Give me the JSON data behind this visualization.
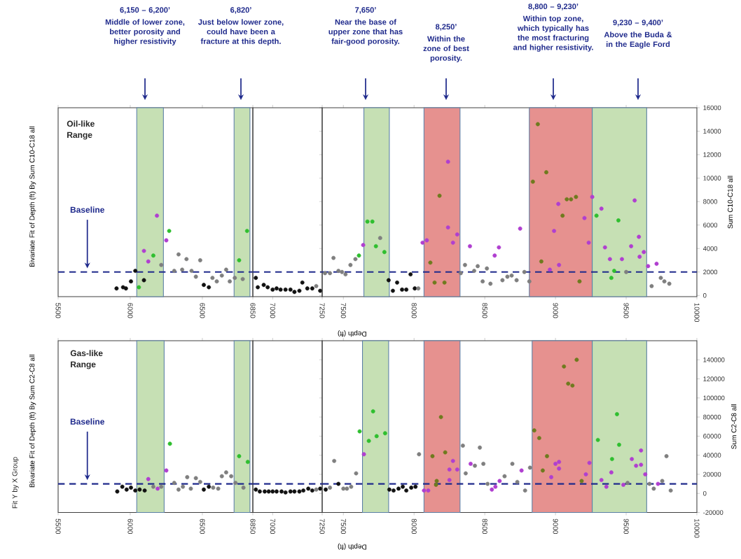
{
  "chart_data": [
    {
      "type": "scatter",
      "title": "Bivariate Fit of Depth (ft) By Sum C10-C18 all",
      "marker": "circle",
      "tick_labels": "x",
      "annotations": [
        "Oil-like Range",
        "6,150 – 6,200’",
        "Middle of lower zone, better porosity and higher resistivity",
        "6,820’",
        "Just below lower zone, could have been a fracture at this depth."
      ],
      "xlim": [
        5500,
        6850
      ],
      "ylim": [
        -100,
        16000
      ],
      "xticks": [
        5500,
        6000,
        6500,
        6850
      ],
      "bands": [
        {
          "axis": "x",
          "from": 6045,
          "to": 6230,
          "color": "#c6e0b4"
        },
        {
          "axis": "x",
          "from": 6720,
          "to": 6830,
          "color": "#c6e0b4"
        }
      ],
      "ref_lines": [
        {
          "axis": "y",
          "value": 2000,
          "label": "Baseline",
          "color": "#1f2a8c",
          "line_style": "dashed"
        }
      ],
      "series": [
        {
          "color": "#111111",
          "x": [
            5905,
            5950,
            5970,
            6005,
            6035,
            6095,
            6510,
            6545
          ],
          "values": [
            600,
            700,
            600,
            1200,
            2100,
            1300,
            900,
            700
          ]
        },
        {
          "color": "#7f7f7f",
          "x": [
            6215,
            6305,
            6335,
            6360,
            6390,
            6425,
            6455,
            6485,
            6570,
            6600,
            6635,
            6665,
            6690,
            6725,
            6780
          ],
          "values": [
            2600,
            2100,
            3500,
            2200,
            3100,
            2100,
            1600,
            3000,
            1500,
            1200,
            1700,
            2200,
            1200,
            1500,
            1400
          ]
        },
        {
          "color": "#2fbf2f",
          "x": [
            6060,
            6160,
            6270,
            6755,
            6810
          ],
          "values": [
            700,
            3400,
            5500,
            3000,
            5500
          ]
        },
        {
          "color": "#b03fd0",
          "x": [
            6095,
            6125,
            6185,
            6250
          ],
          "values": [
            3800,
            2900,
            6800,
            4700
          ]
        }
      ]
    },
    {
      "type": "scatter",
      "marker": "circle",
      "tick_labels": "x",
      "xlim": [
        6900,
        7250
      ],
      "ylim": [
        -100,
        16000
      ],
      "xticks": [
        7000,
        7250
      ],
      "ref_lines": [
        {
          "axis": "y",
          "value": 2000,
          "color": "#1f2a8c",
          "line_style": "dashed"
        }
      ],
      "series": [
        {
          "color": "#111111",
          "x": [
            6915,
            6925,
            6955,
            6975,
            7000,
            7020,
            7040,
            7065,
            7090,
            7110,
            7135,
            7150,
            7175,
            7200,
            7240
          ],
          "values": [
            1500,
            700,
            900,
            700,
            500,
            600,
            500,
            500,
            500,
            300,
            400,
            1100,
            600,
            600,
            400
          ]
        },
        {
          "color": "#7f7f7f",
          "x": [
            7220
          ],
          "values": [
            800
          ]
        }
      ]
    },
    {
      "type": "scatter",
      "marker": "circle",
      "xlabel": "Depth (ft)",
      "ylabel": "Sum C10-C18 all",
      "annotations": [
        "7,650’",
        "Near the base of upper zone that has fair-good porosity.",
        "8,250’",
        "Within the zone of best porosity.",
        "8,800 – 9,230’",
        "Within top zone, which typically has the most fracturing and higher resistivity.",
        "9,230 – 9,400’",
        "Above the Buda & in the Eagle Ford"
      ],
      "xlim": [
        7350,
        10000
      ],
      "ylim": [
        -100,
        16000
      ],
      "xticks": [
        7500,
        8000,
        8500,
        9000,
        9500,
        10000
      ],
      "yticks": [
        0,
        2000,
        4000,
        6000,
        8000,
        10000,
        12000,
        14000,
        16000
      ],
      "bands": [
        {
          "axis": "x",
          "from": 7645,
          "to": 7825,
          "color": "#c6e0b4"
        },
        {
          "axis": "x",
          "from": 8070,
          "to": 8325,
          "color": "#e6918f"
        },
        {
          "axis": "x",
          "from": 8815,
          "to": 9260,
          "color": "#e6918f"
        },
        {
          "axis": "x",
          "from": 9260,
          "to": 9645,
          "color": "#c6e0b4"
        }
      ],
      "ref_lines": [
        {
          "axis": "y",
          "value": 2000,
          "color": "#1f2a8c",
          "line_style": "dashed"
        }
      ],
      "series": [
        {
          "color": "#111111",
          "x": [
            7820,
            7850,
            7880,
            7915,
            7945,
            7975,
            8005
          ],
          "values": [
            1300,
            400,
            1100,
            500,
            500,
            1800,
            600
          ]
        },
        {
          "color": "#7f7f7f",
          "x": [
            7370,
            7405,
            7430,
            7465,
            7490,
            7515,
            7550,
            7585,
            7760,
            8030,
            8330,
            8360,
            8425,
            8450,
            8485,
            8515,
            8540,
            8625,
            8660,
            8690,
            8725,
            8780,
            8815,
            9500,
            9680,
            9745,
            9770,
            9805
          ],
          "values": [
            1900,
            1900,
            3200,
            2100,
            2000,
            1800,
            2600,
            3100,
            4900,
            600,
            1900,
            2600,
            2100,
            2500,
            1200,
            2300,
            1000,
            1300,
            1600,
            1700,
            1300,
            2000,
            1200,
            2000,
            800,
            1500,
            1200,
            1000
          ]
        },
        {
          "color": "#2fbf2f",
          "x": [
            7610,
            7670,
            7705,
            7730,
            7790,
            9290,
            9395,
            9415,
            9445
          ],
          "values": [
            3400,
            6300,
            6300,
            4200,
            3700,
            6800,
            1500,
            2100,
            6400
          ]
        },
        {
          "color": "#b03fd0",
          "x": [
            7640,
            8060,
            8090,
            8240,
            8240,
            8275,
            8305,
            8395,
            8570,
            8600,
            8750,
            8960,
            8990,
            9020,
            9025,
            9205,
            9235,
            9260,
            9325,
            9350,
            9385,
            9470,
            9535,
            9560,
            9590,
            9595,
            9625,
            9655,
            9715
          ],
          "values": [
            4300,
            4500,
            4700,
            5800,
            11400,
            4500,
            5200,
            4200,
            3400,
            4100,
            5700,
            2200,
            5500,
            7800,
            2600,
            6600,
            4500,
            8400,
            7400,
            4100,
            3100,
            3100,
            4200,
            8100,
            5000,
            3300,
            3700,
            2500,
            2700
          ]
        },
        {
          "color": "#6f7a1e",
          "x": [
            8115,
            8145,
            8180,
            8215,
            8840,
            8875,
            8900,
            8935,
            9050,
            9080,
            9110,
            9145,
            9170
          ],
          "values": [
            2800,
            1100,
            8500,
            1100,
            9700,
            14600,
            2900,
            10500,
            6800,
            8200,
            8200,
            8400,
            1200
          ]
        }
      ]
    },
    {
      "type": "scatter",
      "title": "Bivariate Fit of Depth (ft) By Sum C2-C8 all",
      "marker": "circle",
      "tick_labels": "x",
      "annotations": [
        "Gas-like Range",
        "Fit Y by X Group"
      ],
      "xlim": [
        5500,
        6850
      ],
      "ylim": [
        -20000,
        160000
      ],
      "xticks": [
        5500,
        6000,
        6500,
        6850
      ],
      "bands": [
        {
          "axis": "x",
          "from": 6045,
          "to": 6235,
          "color": "#c6e0b4"
        },
        {
          "axis": "x",
          "from": 6720,
          "to": 6830,
          "color": "#c6e0b4"
        }
      ],
      "ref_lines": [
        {
          "axis": "y",
          "value": 10000,
          "label": "Baseline",
          "color": "#1f2a8c",
          "line_style": "dashed"
        }
      ],
      "series": [
        {
          "color": "#111111",
          "x": [
            5910,
            5945,
            5975,
            6005,
            6035,
            6065,
            6100,
            6510,
            6545
          ],
          "values": [
            2000,
            7000,
            4000,
            6000,
            3000,
            4000,
            3000,
            4000,
            7000
          ]
        },
        {
          "color": "#7f7f7f",
          "x": [
            6160,
            6215,
            6305,
            6335,
            6365,
            6395,
            6420,
            6455,
            6485,
            6575,
            6610,
            6635,
            6665,
            6700,
            6730,
            6785
          ],
          "values": [
            7000,
            7000,
            11000,
            4000,
            7000,
            17000,
            5000,
            16000,
            12000,
            6000,
            5000,
            18000,
            22000,
            18000,
            11000,
            6000
          ]
        },
        {
          "color": "#2fbf2f",
          "x": [
            6275,
            6755,
            6815
          ],
          "values": [
            52000,
            39000,
            33000
          ]
        },
        {
          "color": "#b03fd0",
          "x": [
            6125,
            6190,
            6250
          ],
          "values": [
            15000,
            5000,
            24000
          ]
        }
      ]
    },
    {
      "type": "scatter",
      "marker": "circle",
      "tick_labels": "x",
      "xlim": [
        6900,
        7250
      ],
      "ylim": [
        -20000,
        160000
      ],
      "xticks": [
        7000,
        7250
      ],
      "ref_lines": [
        {
          "axis": "y",
          "value": 10000,
          "color": "#1f2a8c",
          "line_style": "dashed"
        }
      ],
      "series": [
        {
          "color": "#111111",
          "x": [
            6915,
            6935,
            6960,
            6980,
            7000,
            7020,
            7045,
            7065,
            7090,
            7110,
            7135,
            7155,
            7180,
            7200,
            7240
          ],
          "values": [
            4000,
            2000,
            2000,
            2000,
            2000,
            2000,
            2000,
            1000,
            2000,
            2000,
            2000,
            3000,
            5000,
            3000,
            5000
          ]
        },
        {
          "color": "#7f7f7f",
          "x": [
            7220
          ],
          "values": [
            4000
          ]
        }
      ]
    },
    {
      "type": "scatter",
      "marker": "circle",
      "xlabel": "Depth (ft)",
      "ylabel": "Sum C2-C8 all",
      "xlim": [
        7350,
        10000
      ],
      "ylim": [
        -20000,
        160000
      ],
      "xticks": [
        7500,
        8000,
        8500,
        9000,
        9500,
        10000
      ],
      "yticks": [
        -20000,
        0,
        20000,
        40000,
        60000,
        80000,
        100000,
        120000,
        140000
      ],
      "bands": [
        {
          "axis": "x",
          "from": 7635,
          "to": 7820,
          "color": "#c6e0b4"
        },
        {
          "axis": "x",
          "from": 8070,
          "to": 8325,
          "color": "#e6918f"
        },
        {
          "axis": "x",
          "from": 8835,
          "to": 9260,
          "color": "#e6918f"
        },
        {
          "axis": "x",
          "from": 9260,
          "to": 9645,
          "color": "#c6e0b4"
        }
      ],
      "ref_lines": [
        {
          "axis": "y",
          "value": 10000,
          "color": "#1f2a8c",
          "line_style": "dashed"
        }
      ],
      "series": [
        {
          "color": "#111111",
          "x": [
            7375,
            7465,
            7825,
            7855,
            7890,
            7920,
            7945,
            7980,
            8010
          ],
          "values": [
            4000,
            10000,
            4000,
            3000,
            5000,
            7000,
            3000,
            6000,
            7000
          ]
        },
        {
          "color": "#7f7f7f",
          "x": [
            7405,
            7435,
            7500,
            7525,
            7555,
            7590,
            8035,
            8345,
            8365,
            8430,
            8465,
            8490,
            8520,
            8640,
            8695,
            8730,
            8785,
            8820,
            9510,
            9665,
            9695,
            9755,
            9785,
            9815
          ],
          "values": [
            6000,
            34000,
            5000,
            5000,
            7000,
            21000,
            41000,
            50000,
            21000,
            29000,
            48000,
            31000,
            10000,
            18000,
            31000,
            12000,
            3000,
            27000,
            11000,
            10000,
            5000,
            13000,
            39000,
            3000
          ]
        },
        {
          "color": "#2fbf2f",
          "x": [
            7615,
            7680,
            7710,
            7735,
            7795,
            9300,
            9400,
            9435,
            9450
          ],
          "values": [
            65000,
            55000,
            86000,
            60000,
            63000,
            56000,
            36000,
            83000,
            51000
          ]
        },
        {
          "color": "#b03fd0",
          "x": [
            7645,
            8070,
            8100,
            8250,
            8250,
            8275,
            8305,
            8400,
            8550,
            8575,
            8605,
            8760,
            8970,
            9000,
            9025,
            9025,
            9215,
            9240,
            9325,
            9360,
            9395,
            9480,
            9540,
            9570,
            9605,
            9605,
            9635,
            9725
          ],
          "values": [
            41000,
            3000,
            3000,
            14000,
            25000,
            34000,
            25000,
            31000,
            4000,
            7000,
            13000,
            24000,
            17000,
            31000,
            33000,
            26000,
            20000,
            32000,
            14000,
            7000,
            22000,
            9000,
            36000,
            29000,
            45000,
            30000,
            20000,
            10000
          ]
        },
        {
          "color": "#6f7a1e",
          "x": [
            8130,
            8155,
            8160,
            8190,
            8220,
            8850,
            8885,
            8910,
            8940,
            9060,
            9090,
            9120,
            9150,
            9185
          ],
          "values": [
            39000,
            9000,
            13000,
            80000,
            43000,
            66000,
            58000,
            24000,
            39000,
            133000,
            115000,
            113000,
            140000,
            13000
          ]
        }
      ]
    }
  ]
}
